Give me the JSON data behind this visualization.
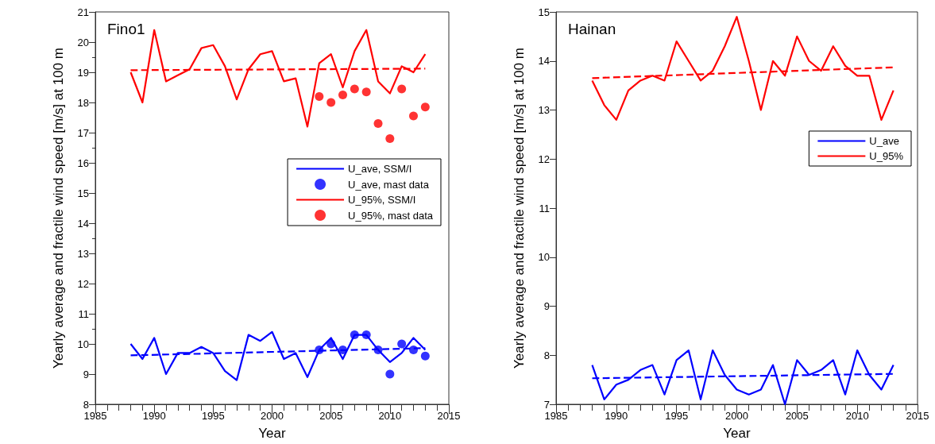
{
  "chart_data": [
    {
      "type": "line",
      "title": "Fino1",
      "xlabel": "Year",
      "ylabel": "Yearly average and fractile wind speed [m/s] at 100 m",
      "xlim": [
        1985,
        2015
      ],
      "xticks": [
        1985,
        1990,
        1995,
        2000,
        2005,
        2010,
        2015
      ],
      "ylim": [
        8,
        21
      ],
      "yticks": [
        8,
        9,
        10,
        11,
        12,
        13,
        14,
        15,
        16,
        17,
        18,
        19,
        20,
        21
      ],
      "grid": false,
      "legend": "right",
      "line_style": "solid",
      "marker": "none",
      "x": [
        1988,
        1989,
        1990,
        1991,
        1992,
        1993,
        1994,
        1995,
        1996,
        1997,
        1998,
        1999,
        2000,
        2001,
        2002,
        2003,
        2004,
        2005,
        2006,
        2007,
        2008,
        2009,
        2010,
        2011,
        2012,
        2013
      ],
      "series": [
        {
          "name": "U_ave, SSM/I",
          "color": "#0000ff",
          "values": [
            10.0,
            9.5,
            10.2,
            9.0,
            9.7,
            9.7,
            9.9,
            9.7,
            9.1,
            8.8,
            10.3,
            10.1,
            10.4,
            9.5,
            9.7,
            8.9,
            9.8,
            10.2,
            9.5,
            10.3,
            10.3,
            9.8,
            9.4,
            9.7,
            10.2,
            9.8
          ]
        },
        {
          "name": "U_ave, mast data",
          "type": "scatter",
          "marker": "circle",
          "color": "#0000ff",
          "x": [
            2004,
            2005,
            2006,
            2007,
            2008,
            2009,
            2010,
            2011,
            2012,
            2013
          ],
          "values": [
            9.8,
            10.0,
            9.8,
            10.3,
            10.3,
            9.8,
            9.0,
            10.0,
            9.8,
            9.6
          ]
        },
        {
          "name": "U_95%, SSM/I",
          "color": "#ff0000",
          "values": [
            19.0,
            18.0,
            20.4,
            18.7,
            18.9,
            19.1,
            19.8,
            19.9,
            19.2,
            18.1,
            19.1,
            19.6,
            19.7,
            18.7,
            18.8,
            17.2,
            19.3,
            19.6,
            18.5,
            19.7,
            20.4,
            18.7,
            18.3,
            19.2,
            19.0,
            19.6
          ]
        },
        {
          "name": "U_95%, mast data",
          "type": "scatter",
          "marker": "circle",
          "color": "#ff0000",
          "x": [
            2004,
            2005,
            2006,
            2007,
            2008,
            2009,
            2010,
            2011,
            2012,
            2013
          ],
          "values": [
            18.2,
            18.0,
            18.25,
            18.45,
            18.35,
            17.3,
            16.8,
            18.45,
            17.55,
            17.85
          ]
        },
        {
          "color": "#0000ff",
          "line_style": "dashed",
          "x": [
            1988,
            2013
          ],
          "values": [
            9.62,
            9.86
          ]
        },
        {
          "color": "#ff0000",
          "line_style": "dashed",
          "x": [
            1988,
            2013
          ],
          "values": [
            19.07,
            19.12
          ]
        }
      ]
    },
    {
      "type": "line",
      "title": "Hainan",
      "xlabel": "Year",
      "ylabel": "Yearly average and fractile wind speed [m/s] at 100 m",
      "xlim": [
        1985,
        2015
      ],
      "xticks": [
        1985,
        1990,
        1995,
        2000,
        2005,
        2010,
        2015
      ],
      "ylim": [
        7,
        15
      ],
      "yticks": [
        7,
        8,
        9,
        10,
        11,
        12,
        13,
        14,
        15
      ],
      "grid": false,
      "legend": "right",
      "line_style": "solid",
      "marker": "none",
      "x": [
        1988,
        1989,
        1990,
        1991,
        1992,
        1993,
        1994,
        1995,
        1996,
        1997,
        1998,
        1999,
        2000,
        2001,
        2002,
        2003,
        2004,
        2005,
        2006,
        2007,
        2008,
        2009,
        2010,
        2011,
        2012,
        2013
      ],
      "series": [
        {
          "name": "U_ave",
          "color": "#0000ff",
          "values": [
            7.8,
            7.1,
            7.4,
            7.5,
            7.7,
            7.8,
            7.2,
            7.9,
            8.1,
            7.1,
            8.1,
            7.6,
            7.3,
            7.2,
            7.3,
            7.8,
            7.0,
            7.9,
            7.6,
            7.7,
            7.9,
            7.2,
            8.1,
            7.6,
            7.3,
            7.8
          ]
        },
        {
          "name": "U_95%",
          "color": "#ff0000",
          "values": [
            13.6,
            13.1,
            12.8,
            13.4,
            13.6,
            13.7,
            13.6,
            14.4,
            14.0,
            13.6,
            13.8,
            14.3,
            14.9,
            14.0,
            13.0,
            14.0,
            13.7,
            14.5,
            14.0,
            13.8,
            14.3,
            13.9,
            13.7,
            13.7,
            12.8,
            13.4
          ]
        },
        {
          "color": "#0000ff",
          "line_style": "dashed",
          "x": [
            1988,
            2013
          ],
          "values": [
            7.53,
            7.62
          ]
        },
        {
          "color": "#ff0000",
          "line_style": "dashed",
          "x": [
            1988,
            2013
          ],
          "values": [
            13.65,
            13.87
          ]
        }
      ]
    }
  ]
}
